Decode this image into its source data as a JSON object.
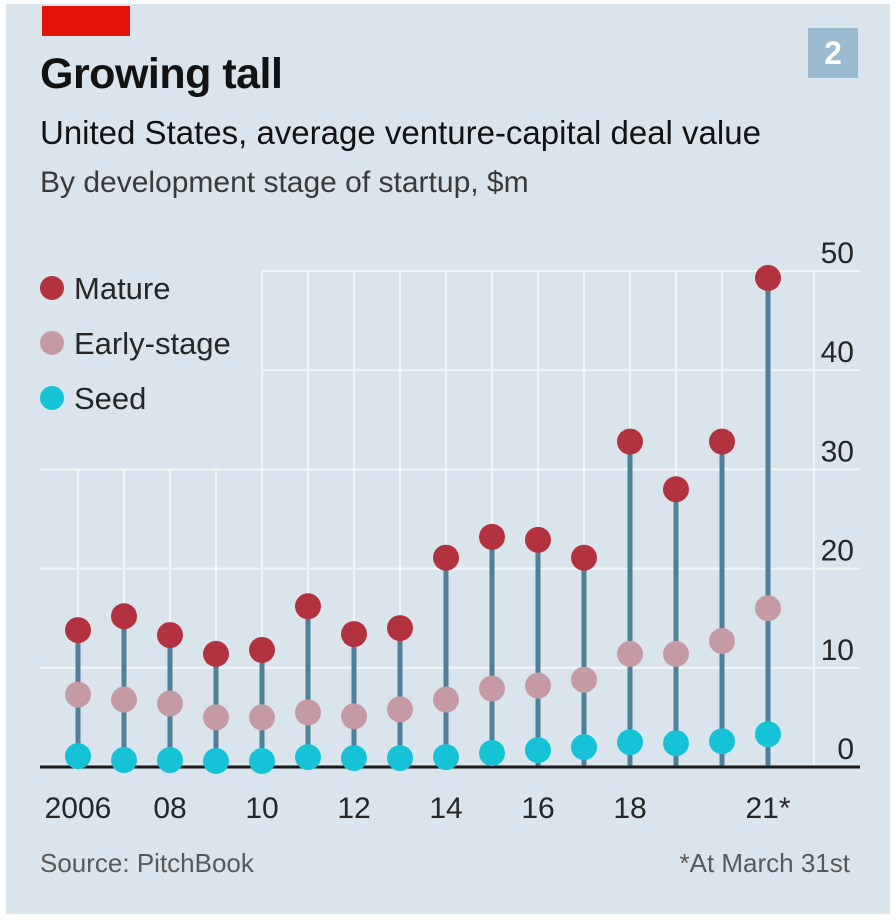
{
  "header": {
    "title": "Growing tall",
    "subtitle": "United States, average venture-capital deal value",
    "subsubtitle": "By development stage of startup, $m",
    "chart_number": "2"
  },
  "footer": {
    "source": "Source: PitchBook",
    "note": "*At March 31st"
  },
  "colors": {
    "background": "#d9e4ec",
    "mature": "#b2323f",
    "early": "#c59aa5",
    "seed": "#16c3d6",
    "stem": "#4f7f99",
    "grid": "#f3f6f8",
    "brand_red": "#e3120b"
  },
  "chart_data": {
    "type": "scatter",
    "title": "Growing tall",
    "subtitle": "United States, average venture-capital deal value",
    "ylabel": "By development stage of startup, $m",
    "xlabel": "",
    "x": [
      2006,
      2007,
      2008,
      2009,
      2010,
      2011,
      2012,
      2013,
      2014,
      2015,
      2016,
      2017,
      2018,
      2019,
      2020,
      2021
    ],
    "x_tick_labels": [
      {
        "x": 2006,
        "label": "2006"
      },
      {
        "x": 2008,
        "label": "08"
      },
      {
        "x": 2010,
        "label": "10"
      },
      {
        "x": 2012,
        "label": "12"
      },
      {
        "x": 2014,
        "label": "14"
      },
      {
        "x": 2016,
        "label": "16"
      },
      {
        "x": 2018,
        "label": "18"
      },
      {
        "x": 2021,
        "label": "21*"
      }
    ],
    "y_ticks": [
      0,
      10,
      20,
      30,
      40,
      50
    ],
    "ylim": [
      0,
      50
    ],
    "grid": true,
    "y_axis_position": "right",
    "legend_position": "top-left",
    "series": [
      {
        "name": "Mature",
        "color": "#b2323f",
        "values": [
          13.8,
          15.2,
          13.3,
          11.4,
          11.8,
          16.2,
          13.4,
          14.0,
          21.1,
          23.2,
          22.9,
          21.1,
          32.8,
          28.0,
          32.8,
          49.3
        ]
      },
      {
        "name": "Early-stage",
        "color": "#c59aa5",
        "values": [
          7.3,
          6.8,
          6.4,
          5.0,
          5.0,
          5.5,
          5.1,
          5.8,
          6.8,
          7.9,
          8.2,
          8.8,
          11.4,
          11.4,
          12.7,
          16.0
        ]
      },
      {
        "name": "Seed",
        "color": "#16c3d6",
        "values": [
          1.1,
          0.7,
          0.7,
          0.6,
          0.6,
          1.0,
          0.9,
          0.9,
          1.0,
          1.4,
          1.7,
          2.0,
          2.5,
          2.4,
          2.6,
          3.3
        ]
      }
    ]
  }
}
